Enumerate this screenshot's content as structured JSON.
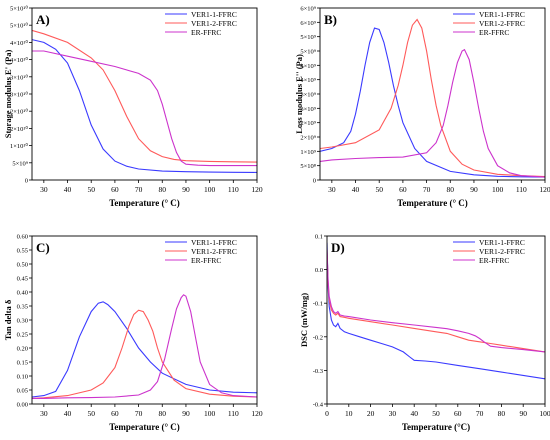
{
  "colors": {
    "ver1_1": "#3a3aff",
    "ver1_2": "#ff5a5a",
    "er": "#cc33cc",
    "axis": "#000000"
  },
  "chart_data": [
    {
      "panel_label": "A)",
      "type": "line",
      "xlabel": "Temperature (° C)",
      "ylabel": "Storage modulus E' (Pa)",
      "xlim": [
        25,
        120
      ],
      "ylim": [
        0,
        50000000000
      ],
      "x_ticks": [
        30,
        40,
        50,
        60,
        70,
        80,
        90,
        100,
        110,
        120
      ],
      "x_tick_labels": [
        "30",
        "40",
        "50",
        "60",
        "70",
        "80",
        "90",
        "100",
        "110",
        "120"
      ],
      "y_ticks": [
        0,
        5000000000,
        10000000000,
        15000000000,
        20000000000,
        25000000000,
        30000000000,
        35000000000,
        40000000000,
        45000000000,
        50000000000
      ],
      "y_tick_labels": [
        "0",
        "5×10⁹",
        "1×10¹⁰",
        "2×10¹⁰",
        "2×10¹⁰",
        "3×10¹⁰",
        "3×10¹⁰",
        "4×10¹⁰",
        "4×10¹⁰",
        "5×10¹⁰",
        "5×10¹⁰"
      ],
      "legend": "top-right",
      "series": [
        {
          "name": "VER1-1-FFRC",
          "color_key": "ver1_1",
          "x": [
            25,
            30,
            35,
            40,
            45,
            50,
            55,
            60,
            65,
            70,
            80,
            90,
            100,
            110,
            120
          ],
          "y": [
            40800000000,
            40000000000,
            38000000000,
            34000000000,
            26000000000,
            16000000000,
            9000000000,
            5500000000,
            4000000000,
            3200000000,
            2600000000,
            2400000000,
            2300000000,
            2250000000,
            2200000000
          ]
        },
        {
          "name": "VER1-2-FFRC",
          "color_key": "ver1_2",
          "x": [
            25,
            30,
            40,
            50,
            55,
            60,
            65,
            70,
            75,
            80,
            85,
            90,
            100,
            110,
            120
          ],
          "y": [
            43500000000,
            42500000000,
            40000000000,
            35500000000,
            32000000000,
            26000000000,
            18500000000,
            12000000000,
            8500000000,
            6800000000,
            6000000000,
            5600000000,
            5400000000,
            5300000000,
            5200000000
          ]
        },
        {
          "name": "ER-FFRC",
          "color_key": "er",
          "x": [
            25,
            30,
            40,
            50,
            60,
            70,
            75,
            78,
            80,
            82,
            84,
            86,
            88,
            90,
            95,
            100,
            110,
            120
          ],
          "y": [
            37500000000,
            37500000000,
            36000000000,
            34500000000,
            33000000000,
            31000000000,
            29000000000,
            26000000000,
            22000000000,
            17000000000,
            12000000000,
            8000000000,
            5500000000,
            4600000000,
            4300000000,
            4200000000,
            4200000000,
            4200000000
          ]
        }
      ]
    },
    {
      "panel_label": "B)",
      "type": "line",
      "xlabel": "Temperature (° C)",
      "ylabel": "Loss modulus E'' (Pa)",
      "xlim": [
        25,
        120
      ],
      "ylim": [
        0,
        6000000000
      ],
      "x_ticks": [
        30,
        40,
        50,
        60,
        70,
        80,
        90,
        100,
        110,
        120
      ],
      "x_tick_labels": [
        "30",
        "40",
        "50",
        "60",
        "70",
        "80",
        "90",
        "100",
        "110",
        "120"
      ],
      "y_ticks": [
        0,
        500000000,
        1000000000,
        1500000000,
        2000000000,
        2500000000,
        3000000000,
        3500000000,
        4000000000,
        4500000000,
        5000000000,
        5500000000,
        6000000000
      ],
      "y_tick_labels": [
        "0",
        "5×10⁸",
        "1×10⁹",
        "2×10⁹",
        "2×10⁹",
        "3×10⁹",
        "3×10⁹",
        "4×10⁹",
        "4×10⁹",
        "5×10⁹",
        "5×10⁹",
        "6×10⁹",
        "6×10⁹"
      ],
      "legend": "top-right",
      "series": [
        {
          "name": "VER1-1-FFRC",
          "color_key": "ver1_1",
          "x": [
            25,
            30,
            35,
            38,
            40,
            42,
            44,
            46,
            48,
            50,
            52,
            54,
            56,
            58,
            60,
            65,
            70,
            80,
            90,
            100,
            110,
            120
          ],
          "y": [
            1000000000,
            1100000000,
            1300000000,
            1700000000,
            2300000000,
            3100000000,
            4000000000,
            4800000000,
            5300000000,
            5250000000,
            4800000000,
            4100000000,
            3300000000,
            2600000000,
            2000000000,
            1100000000,
            650000000,
            300000000,
            180000000,
            130000000,
            110000000,
            100000000
          ]
        },
        {
          "name": "VER1-2-FFRC",
          "color_key": "ver1_2",
          "x": [
            25,
            30,
            40,
            50,
            55,
            58,
            60,
            62,
            64,
            66,
            68,
            70,
            72,
            74,
            76,
            80,
            85,
            90,
            100,
            110,
            120
          ],
          "y": [
            1100000000,
            1150000000,
            1300000000,
            1750000000,
            2500000000,
            3300000000,
            4000000000,
            4800000000,
            5400000000,
            5600000000,
            5300000000,
            4500000000,
            3500000000,
            2600000000,
            1900000000,
            1000000000,
            550000000,
            350000000,
            200000000,
            150000000,
            120000000
          ]
        },
        {
          "name": "ER-FFRC",
          "color_key": "er",
          "x": [
            25,
            30,
            40,
            50,
            60,
            70,
            74,
            77,
            79,
            81,
            83,
            85,
            86,
            88,
            90,
            92,
            94,
            96,
            100,
            105,
            110,
            120
          ],
          "y": [
            650000000,
            700000000,
            750000000,
            780000000,
            800000000,
            950000000,
            1300000000,
            1900000000,
            2600000000,
            3400000000,
            4100000000,
            4500000000,
            4550000000,
            4200000000,
            3400000000,
            2500000000,
            1700000000,
            1100000000,
            500000000,
            250000000,
            150000000,
            100000000
          ]
        }
      ]
    },
    {
      "panel_label": "C)",
      "type": "line",
      "xlabel": "Temperature (° C)",
      "ylabel": "Tan delta δ",
      "xlim": [
        25,
        120
      ],
      "ylim": [
        0.0,
        0.6
      ],
      "x_ticks": [
        30,
        40,
        50,
        60,
        70,
        80,
        90,
        100,
        110,
        120
      ],
      "x_tick_labels": [
        "30",
        "40",
        "50",
        "60",
        "70",
        "80",
        "90",
        "100",
        "110",
        "120"
      ],
      "y_ticks": [
        0.0,
        0.05,
        0.1,
        0.15,
        0.2,
        0.25,
        0.3,
        0.35,
        0.4,
        0.45,
        0.5,
        0.55,
        0.6
      ],
      "y_tick_labels": [
        "0.00",
        "0.05",
        "0.10",
        "0.15",
        "0.20",
        "0.25",
        "0.30",
        "0.35",
        "0.40",
        "0.45",
        "0.50",
        "0.55",
        "0.60"
      ],
      "legend": "top-right",
      "series": [
        {
          "name": "VER1-1-FFRC",
          "color_key": "ver1_1",
          "x": [
            25,
            30,
            35,
            40,
            45,
            50,
            53,
            55,
            57,
            60,
            65,
            70,
            75,
            80,
            90,
            100,
            110,
            120
          ],
          "y": [
            0.025,
            0.03,
            0.045,
            0.12,
            0.24,
            0.33,
            0.36,
            0.365,
            0.355,
            0.33,
            0.27,
            0.2,
            0.15,
            0.11,
            0.07,
            0.05,
            0.042,
            0.04
          ]
        },
        {
          "name": "VER1-2-FFRC",
          "color_key": "ver1_2",
          "x": [
            25,
            30,
            40,
            50,
            55,
            60,
            63,
            66,
            68,
            70,
            72,
            74,
            76,
            78,
            80,
            85,
            90,
            100,
            110,
            120
          ],
          "y": [
            0.02,
            0.022,
            0.03,
            0.05,
            0.075,
            0.13,
            0.2,
            0.28,
            0.32,
            0.335,
            0.33,
            0.3,
            0.26,
            0.2,
            0.15,
            0.085,
            0.055,
            0.035,
            0.028,
            0.025
          ]
        },
        {
          "name": "ER-FFRC",
          "color_key": "er",
          "x": [
            25,
            30,
            40,
            50,
            60,
            70,
            75,
            78,
            81,
            84,
            86,
            88,
            89,
            90,
            92,
            94,
            96,
            100,
            105,
            110,
            120
          ],
          "y": [
            0.02,
            0.02,
            0.022,
            0.023,
            0.025,
            0.032,
            0.05,
            0.08,
            0.16,
            0.27,
            0.34,
            0.38,
            0.39,
            0.385,
            0.33,
            0.24,
            0.15,
            0.07,
            0.04,
            0.03,
            0.025
          ]
        }
      ]
    },
    {
      "panel_label": "D)",
      "type": "line",
      "xlabel": "Temperature (°C)",
      "ylabel": "DSC (mW/mg)",
      "xlim": [
        0,
        100
      ],
      "ylim": [
        -0.4,
        0.1
      ],
      "x_ticks": [
        0,
        10,
        20,
        30,
        40,
        50,
        60,
        70,
        80,
        90,
        100
      ],
      "x_tick_labels": [
        "0",
        "10",
        "20",
        "30",
        "40",
        "50",
        "60",
        "70",
        "80",
        "90",
        "100"
      ],
      "y_ticks": [
        -0.4,
        -0.3,
        -0.2,
        -0.1,
        0.0,
        0.1
      ],
      "y_tick_labels": [
        "-0.4",
        "-0.3",
        "-0.2",
        "-0.1",
        "0.0",
        "0.1"
      ],
      "legend": "top-right",
      "series": [
        {
          "name": "VER1-1-FFRC",
          "color_key": "ver1_1",
          "x": [
            0,
            0.5,
            1,
            2,
            3,
            4,
            5,
            6,
            8,
            10,
            15,
            20,
            25,
            30,
            35,
            38,
            40,
            45,
            50,
            60,
            70,
            80,
            90,
            100
          ],
          "y": [
            0.08,
            -0.05,
            -0.11,
            -0.15,
            -0.165,
            -0.17,
            -0.16,
            -0.175,
            -0.185,
            -0.19,
            -0.2,
            -0.21,
            -0.22,
            -0.23,
            -0.245,
            -0.26,
            -0.27,
            -0.272,
            -0.275,
            -0.285,
            -0.295,
            -0.305,
            -0.315,
            -0.325
          ]
        },
        {
          "name": "VER1-2-FFRC",
          "color_key": "ver1_2",
          "x": [
            0,
            0.5,
            1,
            2,
            3,
            4,
            5,
            6,
            8,
            10,
            20,
            30,
            40,
            50,
            55,
            60,
            65,
            70,
            75,
            80,
            90,
            100
          ],
          "y": [
            0.06,
            -0.04,
            -0.09,
            -0.12,
            -0.13,
            -0.135,
            -0.13,
            -0.14,
            -0.142,
            -0.145,
            -0.155,
            -0.165,
            -0.175,
            -0.185,
            -0.19,
            -0.2,
            -0.21,
            -0.215,
            -0.22,
            -0.225,
            -0.235,
            -0.245
          ]
        },
        {
          "name": "ER-FFRC",
          "color_key": "er",
          "x": [
            0,
            0.5,
            1,
            2,
            3,
            4,
            5,
            6,
            8,
            10,
            20,
            30,
            40,
            50,
            55,
            60,
            65,
            68,
            70,
            72,
            75,
            80,
            90,
            100
          ],
          "y": [
            0.05,
            -0.03,
            -0.08,
            -0.11,
            -0.125,
            -0.13,
            -0.125,
            -0.135,
            -0.138,
            -0.14,
            -0.15,
            -0.158,
            -0.165,
            -0.172,
            -0.176,
            -0.182,
            -0.19,
            -0.197,
            -0.205,
            -0.215,
            -0.228,
            -0.232,
            -0.238,
            -0.245
          ]
        }
      ]
    }
  ]
}
